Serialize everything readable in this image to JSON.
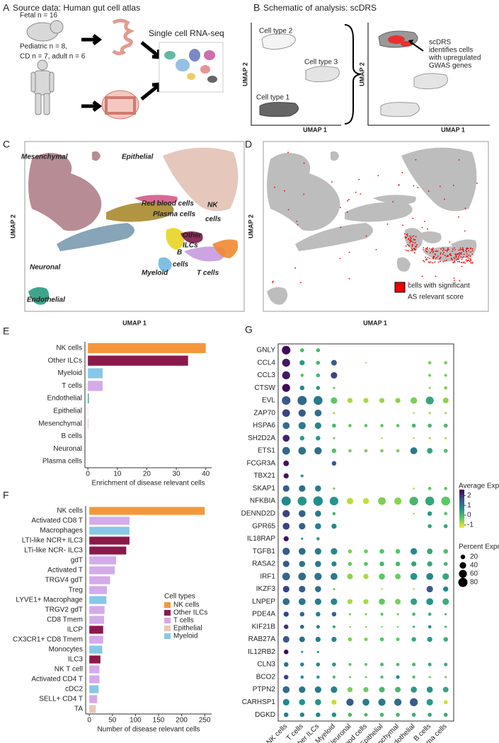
{
  "panels": {
    "a": {
      "letter": "A",
      "title": "Source data: Human gut cell atlas",
      "fetal": "Fetal n = 16",
      "pediatric": "Pediatric n = 8,",
      "adult": "CD n = 7, adult n = 6",
      "scrna": "Single cell RNA-seq"
    },
    "b": {
      "letter": "B",
      "title": "Schematic of analysis: scDRS",
      "cell_types": [
        "Cell type 2",
        "Cell type 3",
        "Cell type 1"
      ],
      "note": [
        "scDRS",
        "identifies cells",
        "with upregulated",
        "GWAS genes"
      ],
      "axis_x": "UMAP 1",
      "axis_y": "UMAP 2"
    },
    "c": {
      "letter": "C",
      "labels": [
        "Mesenchymal",
        "Epithelial",
        "Red blood cells",
        "Plasma cells",
        "NK",
        "cells",
        "Other",
        "ILCs",
        "B",
        "cells",
        "Neuronal",
        "Myeloid",
        "T cells",
        "Endothelial"
      ],
      "axis_x": "UMAP 1",
      "axis_y": "UMAP 2"
    },
    "d": {
      "letter": "D",
      "legend": [
        "cells with significant",
        "AS relevant score"
      ],
      "axis_x": "UMAP 1",
      "axis_y": "UMAP 2"
    }
  },
  "chart_data": [
    {
      "type": "hbar",
      "letter": "E",
      "xlabel": "Enrichment of disease relevant cells",
      "categories": [
        "NK cells",
        "Other ILCs",
        "Myeloid",
        "T cells",
        "Endothelial",
        "Epithelial",
        "Mesenchymal",
        "B cells",
        "Neuronal",
        "Plasma cells"
      ],
      "values": [
        40,
        34,
        5,
        5,
        0.3,
        0.1,
        0.1,
        0,
        0,
        0
      ],
      "colors": [
        "#f4973c",
        "#8b1a4b",
        "#86c8e8",
        "#d4aaea",
        "#2a9a80",
        "#e8c8b8",
        "#b07f88",
        "#e8d420",
        "#7a9ab0",
        "#a88a2c"
      ],
      "xlim": [
        -1,
        42
      ],
      "xticks": [
        0,
        10,
        20,
        30,
        40
      ]
    },
    {
      "type": "hbar",
      "letter": "F",
      "xlabel": "Number of disease relevant cells",
      "categories": [
        "NK cells",
        "Activated CD8 T",
        "Macrophages",
        "LTI-like NCR+ ILC3",
        "LTi-like NCR- ILC3",
        "gdT",
        "Activated T",
        "TRGV4 gdT",
        "Treg",
        "LYVE1+ Macrophage",
        "TRGV2 gdT",
        "CD8 Tmem",
        "ILCP",
        "CX3CR1+ CD8 Tmem",
        "Monocytes",
        "ILC3",
        "NK T cell",
        "Activated CD4 T",
        "cDC2",
        "SELL+ CD4 T",
        "TA"
      ],
      "values": [
        250,
        87,
        87,
        87,
        80,
        58,
        55,
        45,
        38,
        37,
        33,
        32,
        30,
        30,
        28,
        24,
        22,
        22,
        20,
        17,
        14
      ],
      "colors": [
        "#f4973c",
        "#d4aaea",
        "#86c8e8",
        "#8b1a4b",
        "#8b1a4b",
        "#d4aaea",
        "#d4aaea",
        "#d4aaea",
        "#d4aaea",
        "#86c8e8",
        "#d4aaea",
        "#d4aaea",
        "#8b1a4b",
        "#d4aaea",
        "#86c8e8",
        "#8b1a4b",
        "#d4aaea",
        "#d4aaea",
        "#86c8e8",
        "#d4aaea",
        "#e8c8b8"
      ],
      "legend_title": "Cell types",
      "series": [
        {
          "name": "NK cells",
          "color": "#f4973c"
        },
        {
          "name": "Other ILCs",
          "color": "#8b1a4b"
        },
        {
          "name": "T cells",
          "color": "#d4aaea"
        },
        {
          "name": "Epithelial",
          "color": "#e8c8b8"
        },
        {
          "name": "Myeloid",
          "color": "#86c8e8"
        }
      ],
      "xlim": [
        -8,
        265
      ],
      "xticks": [
        0,
        50,
        100,
        150,
        200,
        250
      ]
    },
    {
      "type": "dotplot",
      "letter": "G",
      "genes": [
        "GNLY",
        "CCL4",
        "CCL3",
        "CTSW",
        "EVL",
        "ZAP70",
        "HSPA6",
        "SH2D2A",
        "ETS1",
        "FCGR3A",
        "TBX21",
        "SKAP1",
        "NFKBIA",
        "DENND2D",
        "GPR65",
        "IL18RAP",
        "TGFB1",
        "RASA2",
        "IRF1",
        "IKZF3",
        "LNPEP",
        "PDE4A",
        "KIF21B",
        "RAB27A",
        "IL12RB2",
        "CLN3",
        "BCO2",
        "PTPN2",
        "CARHSP1",
        "DGKD"
      ],
      "categories": [
        "NK cells",
        "T cells",
        "Other ILCs",
        "Myeloid",
        "Neuronal",
        "Red blood cells",
        "Epithelial",
        "Mesenchymal",
        "Endothelial",
        "B cells",
        "Plasma cells"
      ],
      "percent": [
        [
          70,
          15,
          15,
          0,
          0,
          0,
          0,
          0,
          0,
          0,
          0
        ],
        [
          60,
          25,
          15,
          30,
          0,
          2,
          0,
          0,
          0,
          10,
          10
        ],
        [
          60,
          10,
          15,
          40,
          0,
          0,
          0,
          0,
          0,
          8,
          8
        ],
        [
          60,
          20,
          15,
          5,
          0,
          0,
          0,
          0,
          0,
          5,
          10
        ],
        [
          70,
          80,
          75,
          40,
          25,
          25,
          25,
          25,
          40,
          60,
          30
        ],
        [
          55,
          50,
          45,
          5,
          0,
          0,
          0,
          0,
          3,
          5,
          5
        ],
        [
          45,
          50,
          40,
          15,
          10,
          10,
          10,
          10,
          15,
          15,
          15
        ],
        [
          45,
          20,
          20,
          5,
          0,
          0,
          3,
          0,
          3,
          5,
          5
        ],
        [
          55,
          55,
          50,
          20,
          10,
          10,
          10,
          10,
          45,
          30,
          15
        ],
        [
          30,
          0,
          0,
          20,
          0,
          0,
          0,
          0,
          0,
          0,
          0
        ],
        [
          25,
          8,
          0,
          0,
          0,
          0,
          0,
          0,
          0,
          0,
          0
        ],
        [
          40,
          40,
          35,
          5,
          0,
          0,
          0,
          0,
          3,
          10,
          10
        ],
        [
          80,
          75,
          85,
          70,
          40,
          35,
          55,
          50,
          70,
          75,
          75
        ],
        [
          50,
          45,
          35,
          10,
          0,
          0,
          0,
          0,
          3,
          20,
          10
        ],
        [
          45,
          40,
          35,
          25,
          0,
          0,
          0,
          0,
          0,
          15,
          15
        ],
        [
          25,
          5,
          10,
          0,
          0,
          0,
          0,
          0,
          0,
          0,
          0
        ],
        [
          50,
          45,
          40,
          40,
          15,
          15,
          20,
          20,
          40,
          30,
          20
        ],
        [
          40,
          35,
          35,
          25,
          15,
          15,
          20,
          20,
          25,
          25,
          15
        ],
        [
          55,
          55,
          50,
          45,
          30,
          25,
          35,
          30,
          45,
          45,
          40
        ],
        [
          40,
          40,
          35,
          5,
          0,
          0,
          3,
          0,
          3,
          40,
          25
        ],
        [
          45,
          45,
          40,
          40,
          25,
          25,
          35,
          30,
          40,
          45,
          40
        ],
        [
          25,
          20,
          20,
          20,
          5,
          5,
          8,
          5,
          10,
          10,
          5
        ],
        [
          20,
          15,
          12,
          8,
          3,
          3,
          3,
          3,
          5,
          10,
          5
        ],
        [
          40,
          30,
          25,
          25,
          15,
          12,
          15,
          12,
          20,
          25,
          20
        ],
        [
          20,
          5,
          5,
          0,
          0,
          0,
          0,
          0,
          0,
          0,
          0
        ],
        [
          20,
          15,
          15,
          15,
          8,
          8,
          12,
          10,
          12,
          12,
          12
        ],
        [
          20,
          10,
          10,
          8,
          5,
          5,
          8,
          12,
          8,
          5,
          5
        ],
        [
          45,
          40,
          40,
          40,
          25,
          25,
          30,
          30,
          35,
          35,
          30
        ],
        [
          40,
          35,
          35,
          25,
          50,
          45,
          50,
          50,
          60,
          40,
          15
        ],
        [
          20,
          20,
          20,
          20,
          15,
          12,
          15,
          15,
          15,
          15,
          15
        ]
      ],
      "expression": [
        [
          2.5,
          0,
          0,
          0,
          0,
          0,
          0,
          0,
          0,
          0,
          0
        ],
        [
          2.3,
          0.5,
          0,
          1.5,
          0,
          -0.5,
          0,
          0,
          0,
          -0.5,
          -0.5
        ],
        [
          2.3,
          -0.2,
          0,
          1.8,
          0,
          0,
          0,
          0,
          0,
          -0.5,
          -0.5
        ],
        [
          2.5,
          0.8,
          0.5,
          -0.5,
          0,
          0,
          0,
          0,
          0,
          -0.7,
          -0.5
        ],
        [
          1.5,
          1.3,
          1,
          -0.3,
          -0.8,
          -0.8,
          -0.7,
          -0.6,
          -0.5,
          0.3,
          -0.6
        ],
        [
          1.8,
          1.5,
          1.2,
          -0.8,
          0,
          0,
          0,
          0,
          -0.8,
          -0.8,
          -0.8
        ],
        [
          1.2,
          1,
          0.8,
          0,
          -0.3,
          -0.3,
          -0.3,
          -0.3,
          0,
          0,
          0
        ],
        [
          2.2,
          0.5,
          0.5,
          -0.5,
          0,
          0,
          -0.8,
          0,
          -0.8,
          -0.8,
          -0.8
        ],
        [
          1.3,
          1.1,
          1.2,
          -0.2,
          -0.5,
          -0.5,
          -0.5,
          -0.5,
          1,
          0.3,
          -0.2
        ],
        [
          2.4,
          0,
          0,
          1.5,
          0,
          0,
          0,
          0,
          0,
          0,
          0
        ],
        [
          2.4,
          0.5,
          0,
          0,
          0,
          0,
          0,
          0,
          0,
          0,
          0
        ],
        [
          1.5,
          1.2,
          1,
          -0.5,
          0,
          0,
          0,
          0,
          -0.8,
          -0.3,
          -0.3
        ],
        [
          0.8,
          0.6,
          0.7,
          0.6,
          -0.9,
          -1,
          -0.5,
          -0.6,
          0,
          0.3,
          -0.3
        ],
        [
          1.8,
          1.4,
          1,
          0,
          0,
          0,
          0,
          0,
          -0.8,
          0.5,
          -0.2
        ],
        [
          1.8,
          1.4,
          1,
          0.8,
          0,
          0,
          0,
          0,
          0,
          0.3,
          0.3
        ],
        [
          2.4,
          0.5,
          0.5,
          0,
          0,
          0,
          0,
          0,
          0,
          0,
          0
        ],
        [
          1.5,
          1.2,
          1,
          0.8,
          -0.5,
          -0.4,
          -0.2,
          -0.2,
          0.8,
          0.3,
          -0.1
        ],
        [
          1.5,
          1.1,
          1,
          0.8,
          -0.3,
          -0.2,
          0,
          0,
          0.3,
          0.3,
          0
        ],
        [
          1.3,
          1.2,
          1.1,
          1,
          -0.6,
          -0.8,
          -0.3,
          -0.4,
          0.6,
          0.8,
          0.3
        ],
        [
          1.8,
          1.5,
          1.2,
          -0.5,
          0,
          0,
          -0.8,
          0,
          -0.8,
          1.5,
          0.8
        ],
        [
          1.2,
          1.1,
          1,
          0.8,
          -0.8,
          -0.8,
          -0.3,
          -0.5,
          0.4,
          0.6,
          0.2
        ],
        [
          1.8,
          1.3,
          1,
          1.4,
          -0.5,
          -0.5,
          -0.3,
          -0.5,
          0,
          0.2,
          0
        ],
        [
          2,
          1.3,
          1,
          0.3,
          -0.5,
          -0.5,
          -0.5,
          -0.5,
          0,
          0.8,
          0
        ],
        [
          1.5,
          1.2,
          1,
          0.8,
          -0.5,
          -0.5,
          -0.2,
          -0.3,
          0.2,
          0.5,
          0.2
        ],
        [
          2.5,
          0.5,
          0.5,
          0,
          0,
          0,
          0,
          0,
          0,
          0,
          0
        ],
        [
          1.2,
          0.8,
          0.8,
          0.5,
          -0.3,
          -0.3,
          0,
          0,
          0,
          0.3,
          0.2
        ],
        [
          1.8,
          0.8,
          0.5,
          0,
          -0.5,
          -0.5,
          0,
          0.8,
          0,
          -0.5,
          -0.5
        ],
        [
          1.2,
          1.1,
          1,
          0.9,
          -0.5,
          -0.4,
          0,
          0,
          0.5,
          0.6,
          0.3
        ],
        [
          0.8,
          0.6,
          0.6,
          -1,
          1.5,
          1,
          1,
          1.2,
          1.5,
          0.5,
          -1
        ],
        [
          1,
          0.8,
          0.8,
          0.6,
          0,
          0,
          0,
          0,
          0.2,
          0.3,
          0.2
        ]
      ],
      "color_title": "Average Expression",
      "color_lim": [
        -1.3,
        2.6
      ],
      "color_ticks": [
        2,
        1,
        0,
        -1
      ],
      "color_scale": [
        "#fde725",
        "#5ec962",
        "#21918c",
        "#3b528b",
        "#440154"
      ],
      "size_title": "Percent Expressed",
      "size_ticks": [
        20,
        40,
        60,
        80
      ]
    }
  ]
}
